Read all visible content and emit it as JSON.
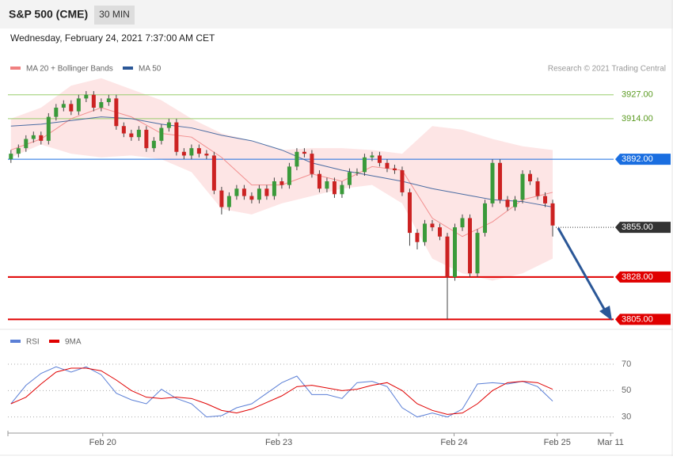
{
  "header": {
    "title": "S&P 500 (CME)",
    "interval": "30 MIN",
    "date": "Wednesday, February 24, 2021 7:37:00 AM CET",
    "credit": "Research © 2021 Trading Central"
  },
  "chart_data": [
    {
      "type": "candlestick",
      "up_color": "#3a9a3a",
      "down_color": "#cc2222",
      "xlim": [
        -0.4,
        80.1
      ],
      "ylim": [
        3800,
        3963
      ],
      "open": [
        3892,
        3895,
        3898,
        3903,
        3905,
        3902,
        3915,
        3920,
        3922,
        3918,
        3925,
        3927,
        3920,
        3923,
        3925,
        3910,
        3906,
        3904,
        3908,
        3898,
        3902,
        3909,
        3912,
        3896,
        3894,
        3898,
        3895,
        3894,
        3875,
        3866,
        3872,
        3876,
        3872,
        3870,
        3876,
        3872,
        3880,
        3878,
        3888,
        3896,
        3895,
        3884,
        3876,
        3880,
        3873,
        3878,
        3885,
        3885,
        3893,
        3894,
        3890,
        3887,
        3886,
        3874,
        3852,
        3847,
        3857,
        3855,
        3850,
        3828,
        3855,
        3860,
        3830,
        3852,
        3868,
        3890,
        3870,
        3866,
        3870,
        3884,
        3880,
        3872,
        3868
      ],
      "high": [
        3897,
        3900,
        3905,
        3907,
        3907,
        3917,
        3922,
        3924,
        3924,
        3927,
        3929,
        3929,
        3925,
        3927,
        3927,
        3912,
        3908,
        3910,
        3910,
        3904,
        3911,
        3914,
        3914,
        3898,
        3900,
        3900,
        3897,
        3896,
        3877,
        3874,
        3878,
        3878,
        3874,
        3878,
        3878,
        3882,
        3882,
        3890,
        3898,
        3898,
        3897,
        3886,
        3882,
        3882,
        3880,
        3887,
        3887,
        3895,
        3896,
        3896,
        3892,
        3889,
        3888,
        3876,
        3854,
        3859,
        3859,
        3857,
        3852,
        3857,
        3862,
        3862,
        3854,
        3870,
        3892,
        3892,
        3872,
        3872,
        3886,
        3886,
        3882,
        3874,
        3870
      ],
      "low": [
        3890,
        3893,
        3896,
        3901,
        3900,
        3900,
        3913,
        3918,
        3916,
        3916,
        3923,
        3918,
        3918,
        3921,
        3908,
        3904,
        3902,
        3902,
        3896,
        3896,
        3900,
        3907,
        3894,
        3892,
        3892,
        3893,
        3892,
        3873,
        3862,
        3864,
        3870,
        3870,
        3868,
        3868,
        3870,
        3870,
        3876,
        3876,
        3886,
        3893,
        3882,
        3874,
        3874,
        3871,
        3871,
        3876,
        3883,
        3883,
        3891,
        3888,
        3885,
        3884,
        3872,
        3845,
        3843,
        3845,
        3853,
        3848,
        3805,
        3826,
        3853,
        3828,
        3828,
        3850,
        3866,
        3868,
        3864,
        3864,
        3868,
        3878,
        3870,
        3866,
        3850
      ],
      "close": [
        3895,
        3898,
        3903,
        3905,
        3902,
        3915,
        3920,
        3922,
        3918,
        3925,
        3927,
        3920,
        3923,
        3925,
        3910,
        3906,
        3904,
        3908,
        3898,
        3902,
        3909,
        3912,
        3896,
        3894,
        3898,
        3895,
        3894,
        3875,
        3866,
        3872,
        3876,
        3872,
        3870,
        3876,
        3872,
        3880,
        3878,
        3888,
        3896,
        3895,
        3884,
        3876,
        3880,
        3873,
        3878,
        3885,
        3885,
        3893,
        3894,
        3890,
        3887,
        3886,
        3874,
        3852,
        3847,
        3857,
        3855,
        3850,
        3828,
        3855,
        3860,
        3830,
        3852,
        3868,
        3890,
        3870,
        3866,
        3870,
        3884,
        3880,
        3872,
        3868,
        3856
      ],
      "band": {
        "color": "#fde0e0",
        "x": [
          0,
          4,
          8,
          12,
          16,
          20,
          24,
          28,
          32,
          36,
          40,
          44,
          48,
          52,
          56,
          60,
          64,
          68,
          72
        ],
        "upper": [
          3914,
          3920,
          3932,
          3936,
          3930,
          3924,
          3914,
          3906,
          3902,
          3897,
          3898,
          3898,
          3897,
          3895,
          3910,
          3908,
          3903,
          3899,
          3897
        ],
        "lower": [
          3893,
          3900,
          3895,
          3893,
          3894,
          3892,
          3885,
          3865,
          3862,
          3868,
          3872,
          3876,
          3878,
          3868,
          3838,
          3830,
          3826,
          3830,
          3838
        ]
      },
      "series": [
        {
          "name": "MA 20 + Bollinger Bands",
          "color": "#f08080",
          "x": [
            0,
            4,
            8,
            12,
            16,
            20,
            24,
            28,
            32,
            36,
            40,
            44,
            48,
            52,
            56,
            60,
            64,
            68,
            72
          ],
          "values": [
            3897,
            3903,
            3914,
            3920,
            3915,
            3906,
            3904,
            3893,
            3878,
            3878,
            3884,
            3880,
            3888,
            3886,
            3860,
            3850,
            3858,
            3870,
            3874
          ]
        },
        {
          "name": "MA 50",
          "color": "#2b5797",
          "x": [
            0,
            4,
            8,
            12,
            16,
            20,
            24,
            28,
            32,
            36,
            40,
            44,
            48,
            52,
            56,
            60,
            64,
            68,
            72
          ],
          "values": [
            3910,
            3911,
            3913,
            3915,
            3914,
            3911,
            3909,
            3905,
            3902,
            3897,
            3890,
            3886,
            3883,
            3880,
            3876,
            3873,
            3870,
            3869,
            3866
          ]
        }
      ],
      "levels": [
        {
          "value": 3927,
          "label": "3927.00",
          "color": "#9acd6e",
          "box": false
        },
        {
          "value": 3914,
          "label": "3914.00",
          "color": "#9acd6e",
          "box": false
        },
        {
          "value": 3892,
          "label": "3892.00",
          "color": "#1a6ee0",
          "box": true
        },
        {
          "value": 3855,
          "label": "3855.00",
          "color": "#333333",
          "box": true,
          "style": "dotted"
        },
        {
          "value": 3828,
          "label": "3828.00",
          "color": "#e00000",
          "box": true
        },
        {
          "value": 3805,
          "label": "3805.00",
          "color": "#e00000",
          "box": true
        }
      ]
    },
    {
      "type": "line",
      "xlim": [
        -0.4,
        80.1
      ],
      "ylim": [
        19,
        94
      ],
      "yticks": [
        30,
        50,
        70
      ],
      "grid": true,
      "xticks": [
        {
          "value": 12.2,
          "label": "Feb 20"
        },
        {
          "value": 35.6,
          "label": "Feb 23"
        },
        {
          "value": 58.9,
          "label": "Feb 24"
        },
        {
          "value": 72.6,
          "label": "Feb 25"
        },
        {
          "value": 79.7,
          "label": "Mar 11"
        }
      ],
      "series": [
        {
          "name": "RSI",
          "color": "#5b7fd6",
          "x": [
            0,
            2,
            4,
            6,
            8,
            10,
            12,
            14,
            16,
            18,
            20,
            22,
            24,
            26,
            28,
            30,
            32,
            34,
            36,
            38,
            40,
            42,
            44,
            46,
            48,
            50,
            52,
            54,
            56,
            58,
            60,
            62,
            64,
            66,
            68,
            70,
            72
          ],
          "values": [
            40,
            54,
            63,
            68,
            64,
            68,
            62,
            48,
            43,
            40,
            51,
            44,
            40,
            30,
            31,
            37,
            40,
            48,
            56,
            61,
            47,
            47,
            44,
            56,
            57,
            53,
            37,
            30,
            33,
            30,
            36,
            55,
            56,
            55,
            57,
            53,
            42
          ]
        },
        {
          "name": "9MA",
          "color": "#e00000",
          "x": [
            0,
            2,
            4,
            6,
            8,
            10,
            12,
            14,
            16,
            18,
            20,
            22,
            24,
            26,
            28,
            30,
            32,
            34,
            36,
            38,
            40,
            42,
            44,
            46,
            48,
            50,
            52,
            54,
            56,
            58,
            60,
            62,
            64,
            66,
            68,
            70,
            72
          ],
          "values": [
            40,
            45,
            55,
            64,
            67,
            67,
            65,
            58,
            50,
            45,
            44,
            45,
            44,
            40,
            35,
            33,
            36,
            41,
            46,
            53,
            54,
            52,
            50,
            51,
            54,
            56,
            50,
            40,
            35,
            32,
            33,
            40,
            50,
            56,
            57,
            56,
            51
          ]
        }
      ]
    }
  ]
}
